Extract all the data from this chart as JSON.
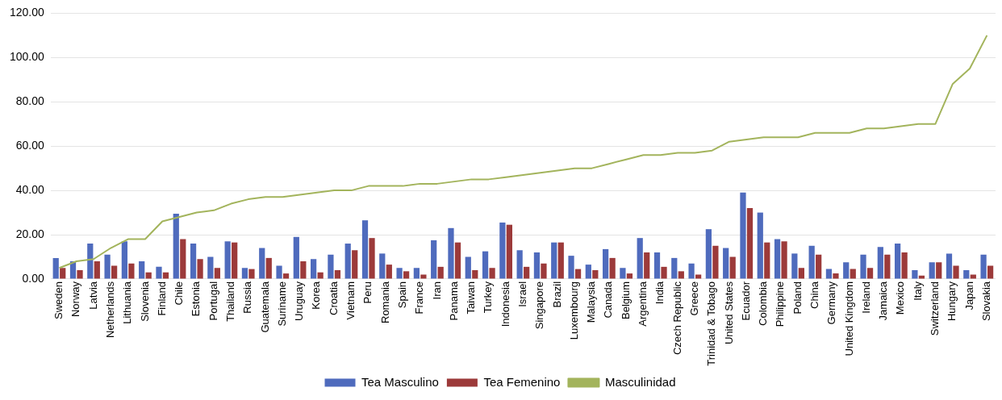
{
  "chart_data": {
    "type": "bar",
    "categories": [
      "Sweden",
      "Norway",
      "Latvia",
      "Netherlands",
      "Lithuania",
      "Slovenia",
      "Finland",
      "Chile",
      "Estonia",
      "Portugal",
      "Thailand",
      "Russia",
      "Guatemala",
      "Suriname",
      "Uruguay",
      "Korea",
      "Croatia",
      "Vietnam",
      "Peru",
      "Romania",
      "Spain",
      "France",
      "Iran",
      "Panama",
      "Taiwan",
      "Turkey",
      "Indonesia",
      "Israel",
      "Singapore",
      "Brazil",
      "Luxembourg",
      "Malaysia",
      "Canada",
      "Belgium",
      "Argentina",
      "India",
      "Czech Republic",
      "Greece",
      "Trinidad & Tobago",
      "United States",
      "Ecuador",
      "Colombia",
      "Philippine",
      "Poland",
      "China",
      "Germany",
      "United Kingdom",
      "Ireland",
      "Jamaica",
      "Mexico",
      "Italy",
      "Switzerland",
      "Hungary",
      "Japan",
      "Slovakia"
    ],
    "series": [
      {
        "name": "Tea Masculino",
        "color": "#4f6bbd",
        "values": [
          9.5,
          8,
          16,
          11,
          17,
          8,
          5.5,
          29.5,
          16,
          10,
          17,
          5,
          14,
          6,
          19,
          9,
          11,
          16,
          26.5,
          11.5,
          5,
          5,
          17.5,
          23,
          10,
          12.5,
          25.5,
          13,
          12,
          16.5,
          10.5,
          6.5,
          13.5,
          5,
          18.5,
          12,
          9.5,
          7,
          22.5,
          14,
          39,
          30,
          18,
          11.5,
          15,
          4.5,
          7.5,
          11,
          14.5,
          16,
          4,
          7.5,
          11.5,
          4,
          11
        ]
      },
      {
        "name": "Tea Femenino",
        "color": "#9c3a3a",
        "values": [
          5,
          4,
          8,
          6,
          7,
          3,
          3,
          18,
          9,
          5,
          16.5,
          4.5,
          9.5,
          2.5,
          8,
          3,
          4,
          13,
          18.5,
          6.5,
          3.5,
          2,
          5.5,
          16.5,
          4,
          5,
          24.5,
          5.5,
          7,
          16.5,
          4.5,
          4,
          9.5,
          2.5,
          12,
          5.5,
          3.5,
          2,
          15,
          10,
          32,
          16.5,
          17,
          5,
          11,
          2.5,
          4.5,
          5,
          11,
          12,
          1.5,
          7.5,
          6,
          2,
          6
        ]
      },
      {
        "name": "Masculinidad",
        "type": "line",
        "color": "#a3b45c",
        "values": [
          5,
          8,
          9,
          14,
          18,
          18,
          26,
          28,
          30,
          31,
          34,
          36,
          37,
          37,
          38,
          39,
          40,
          40,
          42,
          42,
          42,
          43,
          43,
          44,
          45,
          45,
          46,
          47,
          48,
          49,
          50,
          50,
          52,
          54,
          56,
          56,
          57,
          57,
          58,
          62,
          63,
          64,
          64,
          64,
          66,
          66,
          66,
          68,
          68,
          69,
          70,
          70,
          88,
          95,
          110
        ]
      }
    ],
    "ylim": [
      0,
      120
    ],
    "yticks": [
      {
        "value": 0,
        "label": "0.00"
      },
      {
        "value": 20,
        "label": "20.00"
      },
      {
        "value": 40,
        "label": "40.00"
      },
      {
        "value": 60,
        "label": "60.00"
      },
      {
        "value": 80,
        "label": "80.00"
      },
      {
        "value": 100,
        "label": "100.00"
      },
      {
        "value": 120,
        "label": "120.00"
      }
    ],
    "grid": "y",
    "legend": "bottom",
    "marker": "none",
    "line_style": "solid"
  }
}
